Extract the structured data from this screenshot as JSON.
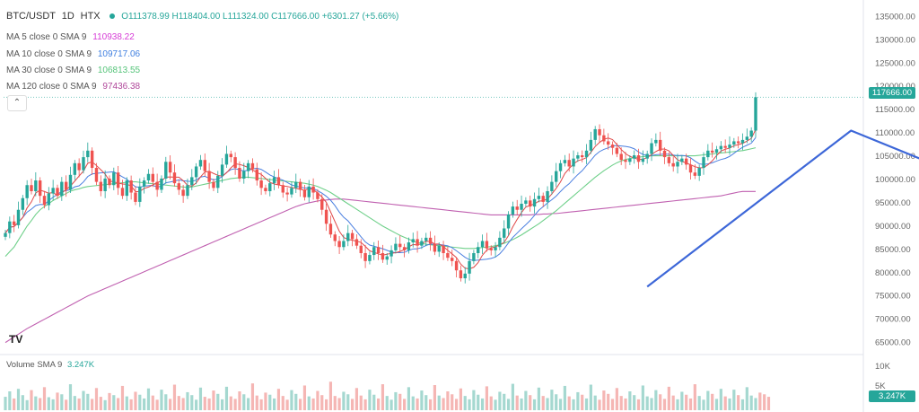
{
  "header": {
    "symbol": "BTC/USDT",
    "interval": "1D",
    "exchange": "HTX",
    "ohlc": "O111378.99 H118404.00 L111324.00 C117666.00 +6301.27 (+5.66%)"
  },
  "ma_legend": [
    {
      "label": "MA 5 close 0 SMA 9",
      "value": "110938.22",
      "color": "#d63cd6"
    },
    {
      "label": "MA 10 close 0 SMA 9",
      "value": "109717.06",
      "color": "#3f7fe0"
    },
    {
      "label": "MA 30 close 0 SMA 9",
      "value": "106813.55",
      "color": "#56c47a"
    },
    {
      "label": "MA 120 close 0 SMA 9",
      "value": "97436.38",
      "color": "#b0479a"
    }
  ],
  "price_tag": "117666.00",
  "volume": {
    "label": "Volume SMA 9",
    "value": "3.247K",
    "tag": "3.247K",
    "ticks": [
      "10K",
      "5K"
    ]
  },
  "collapse_icon": "chevron-up-icon",
  "logo_text": "TV",
  "colors": {
    "up": "#26a69a",
    "down": "#ef5350",
    "trend": "#3d67d8",
    "ma5": "#e04848",
    "ma10": "#4a7fe0",
    "ma30": "#6fd08a",
    "ma120": "#c060b0"
  },
  "chart_data": {
    "type": "candlestick",
    "yticks": [
      "135000.00",
      "130000.00",
      "125000.00",
      "120000.00",
      "115000.00",
      "110000.00",
      "105000.00",
      "100000.00",
      "95000.00",
      "90000.00",
      "85000.00",
      "80000.00",
      "75000.00",
      "70000.00",
      "65000.00"
    ],
    "ylim": [
      63000,
      137000
    ],
    "closes": [
      88500,
      91000,
      90200,
      93500,
      96000,
      98800,
      97500,
      99800,
      96500,
      94500,
      97000,
      98200,
      96500,
      99500,
      97800,
      101000,
      103500,
      102000,
      104800,
      106200,
      102500,
      99500,
      97500,
      100200,
      98800,
      101500,
      98200,
      96500,
      99800,
      97200,
      95200,
      98500,
      99800,
      101200,
      99500,
      97800,
      100200,
      103800,
      101500,
      99200,
      97800,
      96500,
      98800,
      100500,
      102800,
      104200,
      101800,
      99500,
      98200,
      100800,
      103200,
      105500,
      104800,
      102500,
      100200,
      101800,
      103500,
      102200,
      99800,
      98200,
      97500,
      99200,
      100500,
      98800,
      97200,
      96800,
      98200,
      99500,
      97800,
      96200,
      98500,
      97200,
      95800,
      93500,
      90500,
      88200,
      86800,
      85500,
      86800,
      88500,
      87200,
      85800,
      84200,
      82500,
      83800,
      85500,
      84200,
      82800,
      83500,
      84800,
      86200,
      85500,
      84800,
      86500,
      87200,
      85800,
      86800,
      87500,
      86200,
      84500,
      85800,
      84200,
      83200,
      82500,
      80500,
      78800,
      79800,
      82500,
      84200,
      85500,
      86800,
      85200,
      84800,
      85500,
      87500,
      89500,
      92500,
      94200,
      93500,
      94800,
      95500,
      94200,
      95800,
      96500,
      95200,
      97500,
      99500,
      101800,
      103500,
      104200,
      102800,
      104500,
      105200,
      104800,
      106200,
      108500,
      110800,
      109500,
      108200,
      107500,
      106800,
      105500,
      104200,
      103800,
      104500,
      105200,
      103800,
      104500,
      105500,
      107800,
      108500,
      106200,
      104800,
      103500,
      102800,
      103800,
      104500,
      103200,
      101500,
      100800,
      102500,
      104800,
      106200,
      105800,
      106500,
      107200,
      106800,
      107500,
      108200,
      107800,
      108500,
      109200,
      110500,
      117666
    ],
    "ma30": [
      83500,
      84500,
      85500,
      87000,
      88500,
      90000,
      91200,
      92500,
      93500,
      94200,
      94800,
      95500,
      96000,
      96500,
      97000,
      97500,
      97800,
      98000,
      98300,
      98500,
      98600,
      98700,
      98800,
      98900,
      99000,
      99100,
      99200,
      99300,
      99400,
      99500,
      99500,
      99400,
      99300,
      99200,
      99100,
      99000,
      98900,
      98800,
      98700,
      98600,
      98500,
      98400,
      98300,
      98400,
      98600,
      98800,
      99000,
      99200,
      99400,
      99600,
      99800,
      100000,
      100200,
      100300,
      100400,
      100500,
      100500,
      100400,
      100300,
      100200,
      100100,
      100000,
      99900,
      99800,
      99700,
      99600,
      99500,
      99400,
      99300,
      99200,
      99000,
      98800,
      98500,
      98100,
      97700,
      97200,
      96600,
      96000,
      95400,
      94800,
      94200,
      93600,
      93000,
      92400,
      91800,
      91200,
      90600,
      90000,
      89500,
      89000,
      88500,
      88000,
      87600,
      87200,
      86800,
      86500,
      86300,
      86100,
      86000,
      85900,
      85800,
      85700,
      85600,
      85500,
      85400,
      85300,
      85200,
      85200,
      85200,
      85300,
      85400,
      85500,
      85600,
      85800,
      86000,
      86300,
      86700,
      87100,
      87600,
      88100,
      88700,
      89300,
      89900,
      90500,
      91200,
      91900,
      92600,
      93300,
      94100,
      94900,
      95700,
      96500,
      97300,
      98100,
      98900,
      99700,
      100500,
      101200,
      101900,
      102500,
      103100,
      103600,
      104000,
      104300,
      104500,
      104700,
      104800,
      104900,
      105000,
      105100,
      105100,
      105100,
      105100,
      105100,
      105100,
      105100,
      105100,
      105100,
      105100,
      105100,
      105200,
      105300,
      105400,
      105500,
      105600,
      105700,
      105800,
      105900,
      106000,
      106100,
      106200,
      106400,
      106600,
      106813
    ],
    "ma120": [
      65000,
      65600,
      66200,
      66800,
      67400,
      68000,
      68500,
      69000,
      69500,
      70000,
      70500,
      71000,
      71500,
      72000,
      72500,
      73000,
      73500,
      74000,
      74500,
      75000,
      75400,
      75800,
      76200,
      76600,
      77000,
      77400,
      77800,
      78200,
      78600,
      79000,
      79400,
      79800,
      80200,
      80600,
      81000,
      81400,
      81800,
      82200,
      82600,
      83000,
      83400,
      83800,
      84200,
      84600,
      85000,
      85400,
      85800,
      86200,
      86600,
      87000,
      87400,
      87800,
      88200,
      88600,
      89000,
      89400,
      89800,
      90200,
      90600,
      91000,
      91400,
      91800,
      92200,
      92600,
      93000,
      93400,
      93800,
      94200,
      94500,
      94800,
      95000,
      95200,
      95400,
      95500,
      95600,
      95700,
      95800,
      95800,
      95800,
      95700,
      95600,
      95500,
      95400,
      95300,
      95200,
      95100,
      95000,
      94900,
      94800,
      94700,
      94600,
      94500,
      94400,
      94300,
      94200,
      94100,
      94000,
      93900,
      93800,
      93700,
      93600,
      93500,
      93400,
      93300,
      93200,
      93100,
      93000,
      92900,
      92800,
      92700,
      92600,
      92500,
      92400,
      92400,
      92400,
      92400,
      92400,
      92400,
      92400,
      92400,
      92400,
      92400,
      92500,
      92500,
      92600,
      92600,
      92700,
      92700,
      92800,
      92900,
      93000,
      93100,
      93200,
      93300,
      93400,
      93500,
      93600,
      93700,
      93800,
      93900,
      94000,
      94100,
      94200,
      94300,
      94400,
      94500,
      94600,
      94700,
      94800,
      94900,
      95000,
      95100,
      95200,
      95300,
      95400,
      95500,
      95600,
      95700,
      95800,
      95900,
      96000,
      96100,
      96200,
      96300,
      96400,
      96500,
      96700,
      96900,
      97100,
      97300,
      97436,
      97436,
      97436,
      97436
    ],
    "trendline": [
      [
        148,
        77000
      ],
      [
        195,
        110500
      ],
      [
        228,
        98000
      ],
      [
        278,
        137000
      ]
    ],
    "volumes": [
      3.2,
      4.5,
      2.8,
      5.1,
      3.6,
      2.4,
      4.8,
      3.3,
      2.9,
      5.5,
      3.1,
      2.6,
      4.2,
      3.8,
      2.5,
      6.2,
      3.4,
      2.8,
      4.6,
      3.9,
      2.7,
      5.3,
      3.2,
      2.4,
      4.1,
      3.6,
      2.9,
      5.8,
      3.3,
      2.6,
      4.4,
      3.7,
      2.8,
      5.2,
      3.5,
      2.5,
      4.9,
      3.8,
      2.7,
      6.1,
      3.4,
      2.9,
      4.3,
      3.6,
      2.5,
      5.4,
      3.2,
      2.8,
      4.7,
      3.9,
      2.6,
      5.6,
      3.3,
      2.7,
      4.5,
      3.8,
      2.9,
      6.4,
      3.5,
      2.6,
      4.2,
      3.7,
      2.8,
      5.1,
      3.4,
      2.5,
      4.8,
      3.9,
      2.7,
      5.9,
      3.3,
      2.8,
      4.6,
      3.6,
      2.6,
      6.8,
      3.4,
      2.9,
      4.4,
      3.8,
      2.7,
      5.3,
      3.5,
      2.6,
      4.9,
      3.7,
      2.8,
      6.2,
      3.4,
      2.5,
      4.3,
      3.9,
      2.7,
      5.5,
      3.3,
      2.8,
      4.7,
      3.6,
      2.6,
      6.0,
      3.5,
      2.9,
      4.5,
      3.8,
      2.7,
      5.2,
      3.4,
      2.6,
      4.8,
      3.7,
      2.8,
      5.7,
      3.3,
      2.5,
      4.4,
      3.9,
      2.7,
      6.3,
      3.5,
      2.8,
      4.6,
      3.6,
      2.6,
      5.4,
      3.4,
      2.9,
      4.9,
      3.8,
      2.7,
      5.8,
      3.3,
      2.6,
      4.3,
      3.7,
      2.8,
      6.1,
      3.5,
      2.5,
      4.7,
      3.9,
      2.7,
      5.3,
      3.4,
      2.8,
      4.5,
      3.6,
      2.6,
      5.9,
      3.3,
      2.9,
      4.8,
      3.8,
      2.7,
      5.6,
      3.5,
      2.6,
      4.4,
      3.7,
      2.8,
      6.2,
      3.4,
      2.5,
      4.6,
      3.9,
      2.7,
      5.1,
      3.3,
      2.8,
      4.9,
      3.6,
      2.6,
      5.5,
      3.5,
      2.9,
      4.2,
      3.8,
      3.2
    ]
  }
}
